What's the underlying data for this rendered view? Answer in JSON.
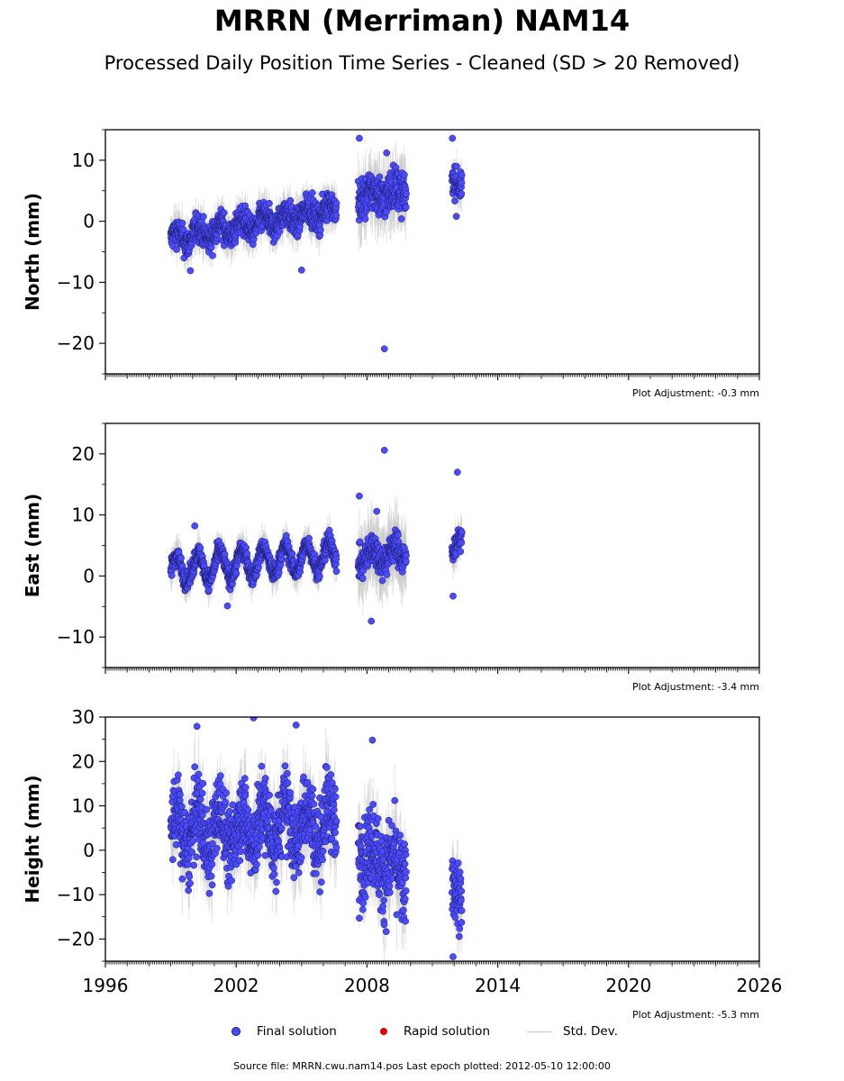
{
  "title": "MRRN (Merriman) NAM14",
  "subtitle": "Processed Daily Position Time Series - Cleaned (SD > 20 Removed)",
  "source_line": "Source file: MRRN.cwu.nam14.pos  Last epoch plotted: 2012-05-10 12:00:00",
  "legend": {
    "final_label": "Final solution",
    "rapid_label": "Rapid solution",
    "stddev_label": "Std. Dev."
  },
  "colors": {
    "final": "#4a4aff",
    "rapid": "#dd0000",
    "stddev": "#c8c8c8",
    "marker_edge": "#1a1a60"
  },
  "chart_data": [
    {
      "type": "scatter",
      "ylabel": "North (mm)",
      "ylim": [
        -25,
        15
      ],
      "yticks": [
        10,
        0,
        -10,
        -20
      ],
      "xlim": [
        1996,
        2026
      ],
      "xticks": [
        1996,
        2002,
        2008,
        2014,
        2020,
        2026
      ],
      "adjustment": "Plot Adjustment: -0.3 mm",
      "segments": [
        {
          "start": 1999.0,
          "end": 2006.6,
          "trend": [
            -3.0,
            2.0
          ],
          "amp": 1.2,
          "noise": 1.6,
          "sd": 2.8
        },
        {
          "start": 2007.6,
          "end": 2009.8,
          "trend": [
            4.0,
            5.0
          ],
          "amp": 0.8,
          "noise": 2.4,
          "sd": 4.5
        },
        {
          "start": 2011.9,
          "end": 2012.35,
          "trend": [
            7.0,
            5.0
          ],
          "amp": 0.3,
          "noise": 1.6,
          "sd": 2.5
        }
      ],
      "outliers": [
        [
          2007.65,
          13.6
        ],
        [
          2008.8,
          -20.9
        ],
        [
          2008.9,
          11.2
        ],
        [
          2011.92,
          13.6
        ],
        [
          1999.9,
          -8.1
        ],
        [
          2005.0,
          -8.0
        ],
        [
          2012.1,
          0.8
        ]
      ]
    },
    {
      "type": "scatter",
      "ylabel": "East (mm)",
      "ylim": [
        -15,
        25
      ],
      "yticks": [
        20,
        10,
        0,
        -10
      ],
      "xlim": [
        1996,
        2026
      ],
      "xticks": [
        1996,
        2002,
        2008,
        2014,
        2020,
        2026
      ],
      "adjustment": "Plot Adjustment: -3.4 mm",
      "segments": [
        {
          "start": 1999.0,
          "end": 2006.6,
          "trend": [
            1.0,
            3.5
          ],
          "amp": 2.2,
          "noise": 1.1,
          "sd": 2.5
        },
        {
          "start": 2007.6,
          "end": 2009.8,
          "trend": [
            3.0,
            4.0
          ],
          "amp": 1.2,
          "noise": 1.8,
          "sd": 5.0
        },
        {
          "start": 2011.9,
          "end": 2012.35,
          "trend": [
            4.0,
            6.0
          ],
          "amp": 0.5,
          "noise": 1.2,
          "sd": 2.5
        }
      ],
      "outliers": [
        [
          2007.65,
          13.1
        ],
        [
          2008.8,
          20.6
        ],
        [
          2008.45,
          10.6
        ],
        [
          2008.2,
          -7.4
        ],
        [
          2012.15,
          17.0
        ],
        [
          2011.95,
          -3.3
        ],
        [
          2001.6,
          -4.9
        ],
        [
          2000.1,
          8.2
        ]
      ]
    },
    {
      "type": "scatter",
      "ylabel": "Height (mm)",
      "ylim": [
        -25,
        30
      ],
      "yticks": [
        30,
        20,
        10,
        0,
        -10,
        -20
      ],
      "xlim": [
        1996,
        2026
      ],
      "xticks": [
        1996,
        2002,
        2008,
        2014,
        2020,
        2026
      ],
      "adjustment": "Plot Adjustment: -5.3 mm",
      "segments": [
        {
          "start": 1999.0,
          "end": 2006.6,
          "trend": [
            4.0,
            6.0
          ],
          "amp": 4.5,
          "noise": 6.2,
          "sd": 7.0
        },
        {
          "start": 2007.6,
          "end": 2009.8,
          "trend": [
            1.0,
            -6.0
          ],
          "amp": 3.0,
          "noise": 6.5,
          "sd": 7.0
        },
        {
          "start": 2011.9,
          "end": 2012.35,
          "trend": [
            -6.0,
            -14.0
          ],
          "amp": 1.0,
          "noise": 5.5,
          "sd": 6.0
        }
      ],
      "outliers": [
        [
          2002.8,
          29.8
        ],
        [
          2004.75,
          28.2
        ],
        [
          2000.2,
          27.9
        ],
        [
          2008.25,
          24.8
        ],
        [
          2007.65,
          -15.3
        ],
        [
          2011.95,
          -24.0
        ]
      ]
    }
  ]
}
